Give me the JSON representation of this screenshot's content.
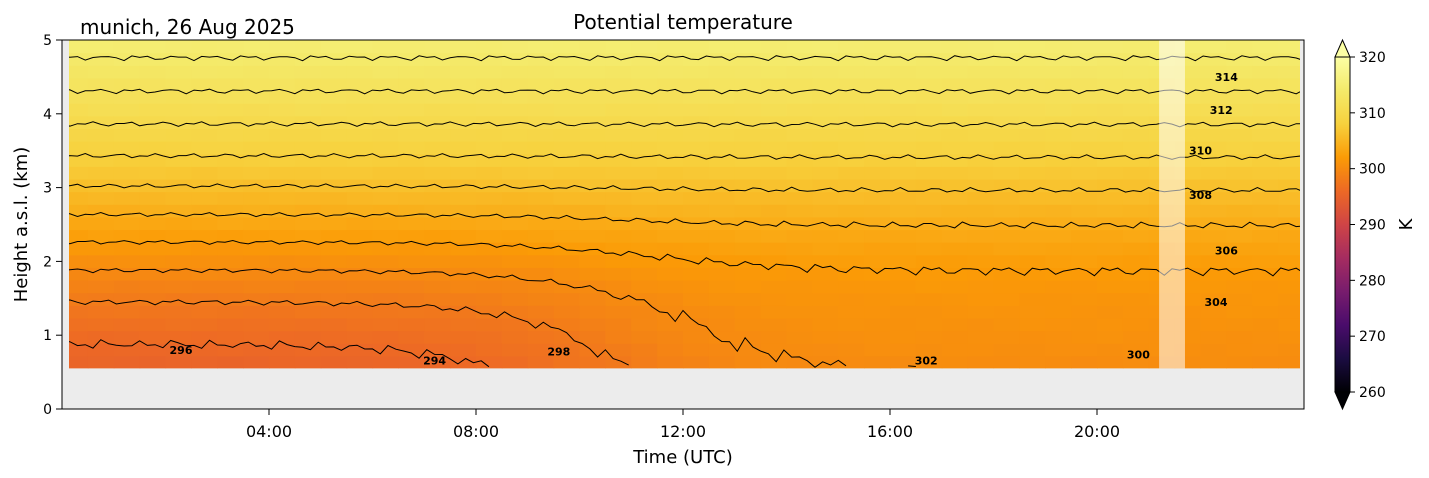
{
  "chart_data": {
    "type": "heatmap",
    "title": "Potential temperature",
    "location_date": "munich, 26 Aug 2025",
    "xlabel": "Time (UTC)",
    "ylabel": "Height a.s.l. (km)",
    "x_unit": "hours UTC",
    "xlim": [
      0,
      24
    ],
    "ylim": [
      0,
      5
    ],
    "x_ticks": [
      4,
      8,
      12,
      16,
      20
    ],
    "x_tick_labels": [
      "04:00",
      "08:00",
      "12:00",
      "16:00",
      "20:00"
    ],
    "y_ticks": [
      0,
      1,
      2,
      3,
      4,
      5
    ],
    "y_tick_labels": [
      "0",
      "1",
      "2",
      "3",
      "4",
      "5"
    ],
    "data_bottom_km": 0.55,
    "gap_hours": [
      21.2,
      21.7
    ],
    "colorbar": {
      "label": "K",
      "min": 260,
      "max": 320,
      "ticks": [
        260,
        270,
        280,
        290,
        300,
        310,
        320
      ],
      "tick_labels": [
        "260",
        "270",
        "280",
        "290",
        "300",
        "310",
        "320"
      ],
      "extend": "both",
      "colormap": "inferno"
    },
    "contour_levels": [
      294,
      296,
      298,
      300,
      302,
      304,
      306,
      308,
      310,
      312,
      314,
      316
    ],
    "contour_labels": [
      {
        "text": "296",
        "t": 2.3,
        "h": 0.8
      },
      {
        "text": "294",
        "t": 7.2,
        "h": 0.66
      },
      {
        "text": "298",
        "t": 9.6,
        "h": 0.78
      },
      {
        "text": "302",
        "t": 16.7,
        "h": 0.66
      },
      {
        "text": "300",
        "t": 20.8,
        "h": 0.74
      },
      {
        "text": "304",
        "t": 22.3,
        "h": 1.45
      },
      {
        "text": "306",
        "t": 22.5,
        "h": 2.15
      },
      {
        "text": "308",
        "t": 22.0,
        "h": 2.9
      },
      {
        "text": "310",
        "t": 22.0,
        "h": 3.5
      },
      {
        "text": "312",
        "t": 22.4,
        "h": 4.05
      },
      {
        "text": "314",
        "t": 22.5,
        "h": 4.5
      }
    ],
    "theta_profile_description": "Potential temperature increases with height from about 294 K near 0.55 km to about 317 K at 5 km; low levels warm from ~295 K in the morning to ~301 K in the afternoon and evening."
  }
}
